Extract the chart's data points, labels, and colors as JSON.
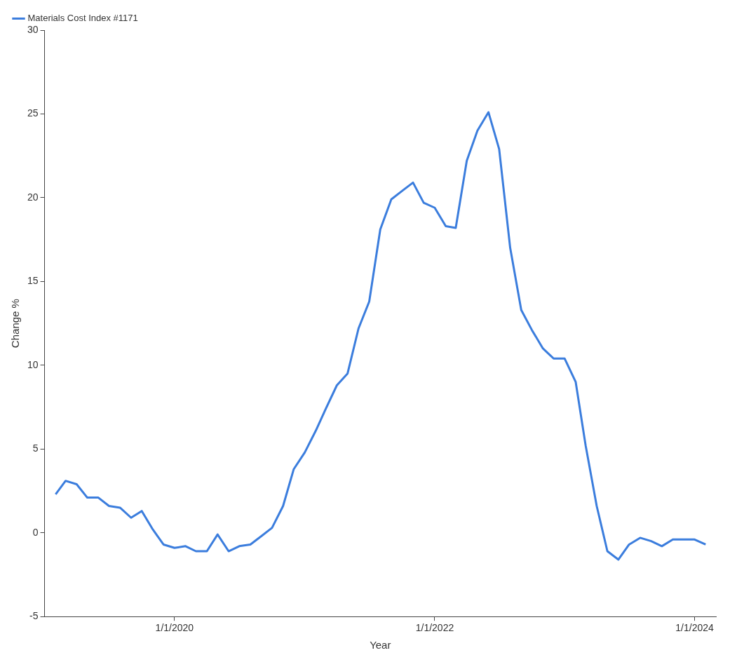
{
  "chart_data": {
    "type": "line",
    "xlabel": "Year",
    "ylabel": "Change %",
    "x": [
      "2019-02",
      "2019-03",
      "2019-04",
      "2019-05",
      "2019-06",
      "2019-07",
      "2019-08",
      "2019-09",
      "2019-10",
      "2019-11",
      "2019-12",
      "2020-01",
      "2020-02",
      "2020-03",
      "2020-04",
      "2020-05",
      "2020-06",
      "2020-07",
      "2020-08",
      "2020-09",
      "2020-10",
      "2020-11",
      "2020-12",
      "2021-01",
      "2021-02",
      "2021-03",
      "2021-04",
      "2021-05",
      "2021-06",
      "2021-07",
      "2021-08",
      "2021-09",
      "2021-10",
      "2021-11",
      "2021-12",
      "2022-01",
      "2022-02",
      "2022-03",
      "2022-04",
      "2022-05",
      "2022-06",
      "2022-07",
      "2022-08",
      "2022-09",
      "2022-10",
      "2022-11",
      "2022-12",
      "2023-01",
      "2023-02",
      "2023-03",
      "2023-04",
      "2023-05",
      "2023-06",
      "2023-07",
      "2023-08",
      "2023-09",
      "2023-10",
      "2023-11",
      "2023-12",
      "2024-01",
      "2024-02"
    ],
    "series": [
      {
        "name": "Materials Cost Index #1171",
        "color": "#3b7ddd",
        "values": [
          2.3,
          3.1,
          2.9,
          2.1,
          2.1,
          1.6,
          1.5,
          0.9,
          1.3,
          0.2,
          -0.7,
          -0.9,
          -0.8,
          -1.1,
          -1.1,
          -0.1,
          -1.1,
          -0.8,
          -0.7,
          -0.2,
          0.3,
          1.6,
          3.8,
          4.8,
          6.1,
          7.4,
          8.8,
          9.5,
          12.2,
          13.8,
          18.1,
          19.9,
          20.4,
          20.9,
          19.7,
          19.4,
          18.3,
          18.2,
          22.2,
          24.0,
          25.1,
          22.9,
          17.0,
          13.3,
          12.1,
          11.0,
          10.4,
          10.4,
          9.0,
          5.2,
          1.6,
          -1.1,
          -1.6,
          -0.7,
          -0.3,
          -0.5,
          -0.8,
          -0.4,
          -0.4,
          -0.4,
          -0.7
        ]
      }
    ],
    "xlim": [
      "2019-01",
      "2024-03"
    ],
    "xticks": [
      {
        "value": "2020-01-01",
        "label": "1/1/2020"
      },
      {
        "value": "2022-01-01",
        "label": "1/1/2022"
      },
      {
        "value": "2024-01-01",
        "label": "1/1/2024"
      }
    ],
    "ylim": [
      -5,
      30
    ],
    "yticks": [
      -5,
      0,
      5,
      10,
      15,
      20,
      25,
      30
    ],
    "grid": false,
    "legend": "top left",
    "marker": "none",
    "line_style": "solid"
  }
}
